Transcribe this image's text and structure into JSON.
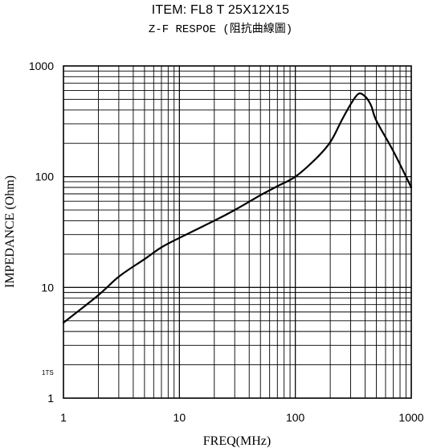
{
  "chart_data": {
    "type": "line",
    "title": "ITEM:   FL8 T 25X12X15",
    "subtitle": "Z-F RESPOE (阻抗曲線圖)",
    "xlabel": "FREQ(MHz)",
    "ylabel": "IMPEDANCE (Ohm)",
    "x_scale": "log",
    "y_scale": "log",
    "xlim": [
      1,
      1000
    ],
    "ylim": [
      1,
      1000
    ],
    "x_ticks": [
      "1",
      "10",
      "100",
      "1000"
    ],
    "y_ticks": [
      "1",
      "10",
      "100",
      "1000"
    ],
    "annotation": "1TS",
    "grid": true,
    "series": [
      {
        "color": "#000000",
        "x": [
          1,
          2,
          3,
          5,
          7,
          10,
          20,
          30,
          50,
          70,
          100,
          150,
          200,
          250,
          300,
          350,
          400,
          450,
          500,
          700,
          1000
        ],
        "y": [
          4.8,
          8.5,
          12.5,
          18,
          23,
          28,
          40,
          50,
          68,
          82,
          100,
          145,
          205,
          320,
          450,
          560,
          530,
          440,
          320,
          170,
          80
        ]
      }
    ]
  }
}
